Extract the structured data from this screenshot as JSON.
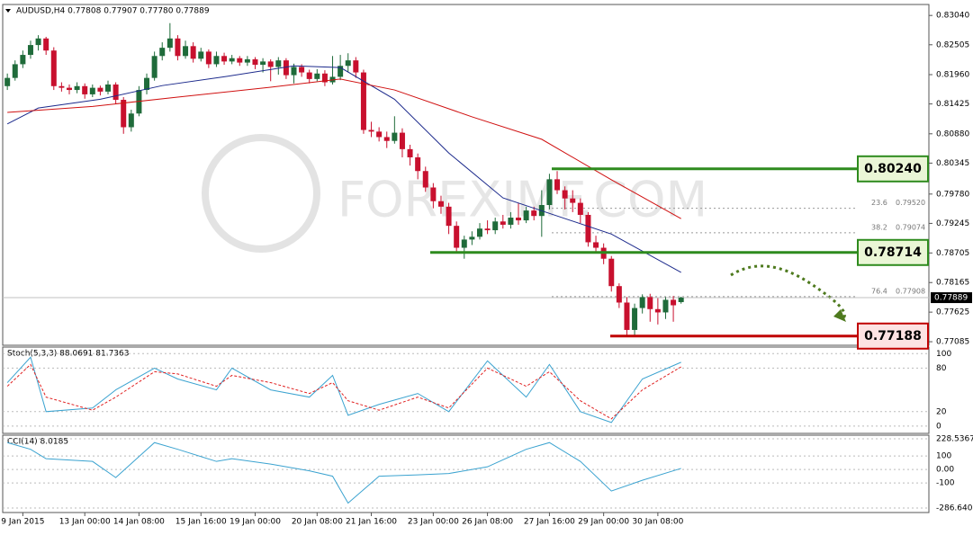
{
  "chart_data": {
    "type": "candlestick",
    "header": "AUDUSD,H4  0.77808 0.77907 0.77780 0.77889",
    "watermark": "FOREXIMF.COM",
    "bull_color": "#1f6b3a",
    "bear_color": "#c8102e",
    "xlim": [
      -0.6,
      119
    ],
    "xticks": [
      {
        "value": 2,
        "label": "9 Jan 2015"
      },
      {
        "value": 10,
        "label": "13 Jan 00:00"
      },
      {
        "value": 17,
        "label": "14 Jan 08:00"
      },
      {
        "value": 25,
        "label": "15 Jan 16:00"
      },
      {
        "value": 32,
        "label": "19 Jan 00:00"
      },
      {
        "value": 40,
        "label": "20 Jan 08:00"
      },
      {
        "value": 47,
        "label": "21 Jan 16:00"
      },
      {
        "value": 55,
        "label": "23 Jan 00:00"
      },
      {
        "value": 62,
        "label": "26 Jan 08:00"
      },
      {
        "value": 70,
        "label": "27 Jan 16:00"
      },
      {
        "value": 77,
        "label": "29 Jan 00:00"
      },
      {
        "value": 84,
        "label": "30 Jan 08:00"
      }
    ],
    "ylim": [
      0.7702,
      0.8324
    ],
    "yticks": [
      {
        "value": 0.8304,
        "label": "0.83040"
      },
      {
        "value": 0.82505,
        "label": "0.82505"
      },
      {
        "value": 0.8196,
        "label": "0.81960"
      },
      {
        "value": 0.81425,
        "label": "0.81425"
      },
      {
        "value": 0.8088,
        "label": "0.80880"
      },
      {
        "value": 0.80345,
        "label": "0.80345"
      },
      {
        "value": 0.7978,
        "label": "0.79780"
      },
      {
        "value": 0.79245,
        "label": "0.79245"
      },
      {
        "value": 0.78705,
        "label": "0.78705"
      },
      {
        "value": 0.78165,
        "label": "0.78165"
      },
      {
        "value": 0.77625,
        "label": "0.77625"
      },
      {
        "value": 0.77085,
        "label": "0.77085"
      }
    ],
    "candles": {
      "open": [
        0.8175,
        0.819,
        0.8215,
        0.8232,
        0.825,
        0.8262,
        0.824,
        0.8175,
        0.8172,
        0.8168,
        0.8175,
        0.816,
        0.8172,
        0.8165,
        0.8178,
        0.815,
        0.81,
        0.8125,
        0.8168,
        0.819,
        0.823,
        0.8245,
        0.8262,
        0.823,
        0.8248,
        0.8225,
        0.8238,
        0.8215,
        0.823,
        0.822,
        0.8226,
        0.8218,
        0.8224,
        0.8214,
        0.822,
        0.821,
        0.8222,
        0.8195,
        0.821,
        0.82,
        0.8188,
        0.8198,
        0.8182,
        0.8192,
        0.8212,
        0.8222,
        0.82,
        0.8095,
        0.8092,
        0.8082,
        0.8075,
        0.809,
        0.806,
        0.8045,
        0.802,
        0.799,
        0.7965,
        0.7955,
        0.792,
        0.788,
        0.7895,
        0.79,
        0.7915,
        0.7912,
        0.7928,
        0.7922,
        0.7935,
        0.793,
        0.7948,
        0.7938,
        0.7958,
        0.8005,
        0.7985,
        0.797,
        0.7962,
        0.794,
        0.789,
        0.788,
        0.786,
        0.781,
        0.778,
        0.773,
        0.777,
        0.779,
        0.7768,
        0.7762,
        0.7785,
        0.77808
      ],
      "high": [
        0.8198,
        0.8222,
        0.824,
        0.8258,
        0.8268,
        0.8265,
        0.8246,
        0.8182,
        0.8178,
        0.8182,
        0.818,
        0.8178,
        0.8176,
        0.8185,
        0.8182,
        0.8155,
        0.8132,
        0.8175,
        0.8198,
        0.8238,
        0.8255,
        0.829,
        0.8268,
        0.8258,
        0.8255,
        0.8245,
        0.8242,
        0.8238,
        0.8236,
        0.8232,
        0.823,
        0.823,
        0.8228,
        0.8226,
        0.8224,
        0.8228,
        0.8226,
        0.8216,
        0.8215,
        0.8205,
        0.8206,
        0.8204,
        0.823,
        0.8232,
        0.8235,
        0.8228,
        0.8205,
        0.811,
        0.81,
        0.8092,
        0.812,
        0.8098,
        0.8068,
        0.8052,
        0.8028,
        0.7998,
        0.7975,
        0.7962,
        0.7928,
        0.7902,
        0.791,
        0.7925,
        0.793,
        0.7935,
        0.794,
        0.7945,
        0.7962,
        0.7955,
        0.7955,
        0.7985,
        0.8015,
        0.802,
        0.7992,
        0.7985,
        0.797,
        0.7945,
        0.7902,
        0.7888,
        0.7865,
        0.7815,
        0.779,
        0.7778,
        0.7795,
        0.7796,
        0.7788,
        0.779,
        0.7792,
        0.77907
      ],
      "low": [
        0.8168,
        0.8185,
        0.8208,
        0.8225,
        0.824,
        0.8232,
        0.8168,
        0.8165,
        0.816,
        0.8162,
        0.8152,
        0.8155,
        0.8158,
        0.816,
        0.8142,
        0.8088,
        0.8092,
        0.812,
        0.816,
        0.8185,
        0.8222,
        0.8238,
        0.8222,
        0.8225,
        0.8218,
        0.822,
        0.8208,
        0.821,
        0.8214,
        0.8215,
        0.8212,
        0.8212,
        0.8206,
        0.82,
        0.8184,
        0.8196,
        0.8188,
        0.818,
        0.8192,
        0.818,
        0.8184,
        0.8175,
        0.8178,
        0.8186,
        0.82,
        0.819,
        0.8088,
        0.8082,
        0.8074,
        0.8062,
        0.807,
        0.8045,
        0.803,
        0.8005,
        0.7982,
        0.7952,
        0.7942,
        0.7905,
        0.787,
        0.786,
        0.7885,
        0.7895,
        0.7905,
        0.7905,
        0.7915,
        0.7915,
        0.7922,
        0.7925,
        0.793,
        0.79,
        0.795,
        0.7978,
        0.795,
        0.7945,
        0.7925,
        0.7882,
        0.787,
        0.785,
        0.78,
        0.777,
        0.7719,
        0.7719,
        0.776,
        0.7745,
        0.774,
        0.775,
        0.7745,
        0.7778
      ],
      "close": [
        0.819,
        0.8215,
        0.8232,
        0.825,
        0.8262,
        0.824,
        0.8175,
        0.8172,
        0.8168,
        0.8175,
        0.816,
        0.8172,
        0.8165,
        0.8178,
        0.815,
        0.81,
        0.8125,
        0.8168,
        0.819,
        0.823,
        0.8245,
        0.8262,
        0.823,
        0.8248,
        0.8225,
        0.8238,
        0.8215,
        0.823,
        0.822,
        0.8226,
        0.8218,
        0.8224,
        0.8214,
        0.822,
        0.821,
        0.8222,
        0.8195,
        0.821,
        0.82,
        0.8188,
        0.8198,
        0.8182,
        0.8192,
        0.8212,
        0.8222,
        0.82,
        0.8095,
        0.8092,
        0.8082,
        0.8075,
        0.809,
        0.806,
        0.8045,
        0.802,
        0.799,
        0.7965,
        0.7955,
        0.792,
        0.788,
        0.7895,
        0.79,
        0.7915,
        0.7912,
        0.7928,
        0.7922,
        0.7935,
        0.793,
        0.7948,
        0.7938,
        0.7958,
        0.8005,
        0.7985,
        0.797,
        0.7962,
        0.794,
        0.789,
        0.788,
        0.786,
        0.781,
        0.778,
        0.773,
        0.777,
        0.779,
        0.7768,
        0.7762,
        0.7785,
        0.7775,
        0.77889
      ]
    },
    "series": [
      {
        "color": "#1c2a8c",
        "x": [
          0,
          4,
          12,
          20,
          28,
          37,
          43,
          50,
          57,
          64,
          71,
          78,
          87
        ],
        "values": [
          0.8106,
          0.8135,
          0.8151,
          0.8176,
          0.8192,
          0.8212,
          0.8209,
          0.8151,
          0.8053,
          0.7971,
          0.7938,
          0.7905,
          0.7835
        ]
      },
      {
        "color": "#d01010",
        "x": [
          0,
          11,
          22,
          34,
          43,
          50,
          60,
          69,
          78,
          87
        ],
        "values": [
          0.8127,
          0.8138,
          0.8155,
          0.8173,
          0.8188,
          0.8168,
          0.8119,
          0.8078,
          0.8004,
          0.7933
        ]
      }
    ],
    "last_price": {
      "value": 0.77889,
      "label": "0.77889"
    },
    "levels": [
      {
        "value": 0.8024,
        "label": "0.80240",
        "color": "#2e8b1e",
        "fill": "#eaf6d6"
      },
      {
        "value": 0.78714,
        "label": "0.78714",
        "color": "#2e8b1e",
        "fill": "#eaf6d6"
      },
      {
        "value": 0.77188,
        "label": "0.77188",
        "color": "#c00000",
        "fill": "#fde2e2"
      }
    ],
    "fibo": [
      {
        "level": "23.6",
        "value": 0.7952,
        "label": "0.79520"
      },
      {
        "level": "38.2",
        "value": 0.79074,
        "label": "0.79074"
      },
      {
        "level": "76.4",
        "value": 0.77908,
        "label": "0.77908"
      }
    ],
    "stoch": {
      "title": "Stoch(5,3,3) 88.0691 81.7363",
      "ylim": [
        -10,
        109
      ],
      "yticks": [
        100,
        80,
        20,
        0
      ],
      "x": [
        0,
        3,
        5,
        11,
        14,
        19,
        22,
        27,
        29,
        34,
        39,
        42,
        44,
        48,
        53,
        57,
        62,
        67,
        70,
        74,
        78,
        82,
        87
      ],
      "main": [
        60,
        95,
        20,
        25,
        50,
        80,
        65,
        50,
        80,
        50,
        40,
        70,
        15,
        30,
        45,
        20,
        90,
        40,
        85,
        20,
        5,
        65,
        88.0691
      ],
      "signal": [
        55,
        85,
        40,
        22,
        40,
        75,
        72,
        55,
        70,
        60,
        45,
        60,
        35,
        22,
        40,
        25,
        80,
        55,
        75,
        35,
        10,
        50,
        81.7363
      ]
    },
    "cci": {
      "title": "CCI(14) 8.0185",
      "ylim": [
        -320,
        255
      ],
      "yticks": [
        228.5367,
        100,
        {
          "value": 0,
          "label": "0.00"
        },
        -100,
        -286.6403
      ],
      "x": [
        0,
        3,
        5,
        11,
        14,
        19,
        22,
        27,
        29,
        34,
        39,
        42,
        44,
        48,
        53,
        57,
        62,
        67,
        70,
        74,
        78,
        82,
        87
      ],
      "values": [
        200,
        150,
        80,
        60,
        -60,
        200,
        150,
        60,
        80,
        40,
        -10,
        -50,
        -250,
        -50,
        -40,
        -30,
        20,
        150,
        200,
        60,
        -160,
        -80,
        8.0185
      ]
    }
  }
}
